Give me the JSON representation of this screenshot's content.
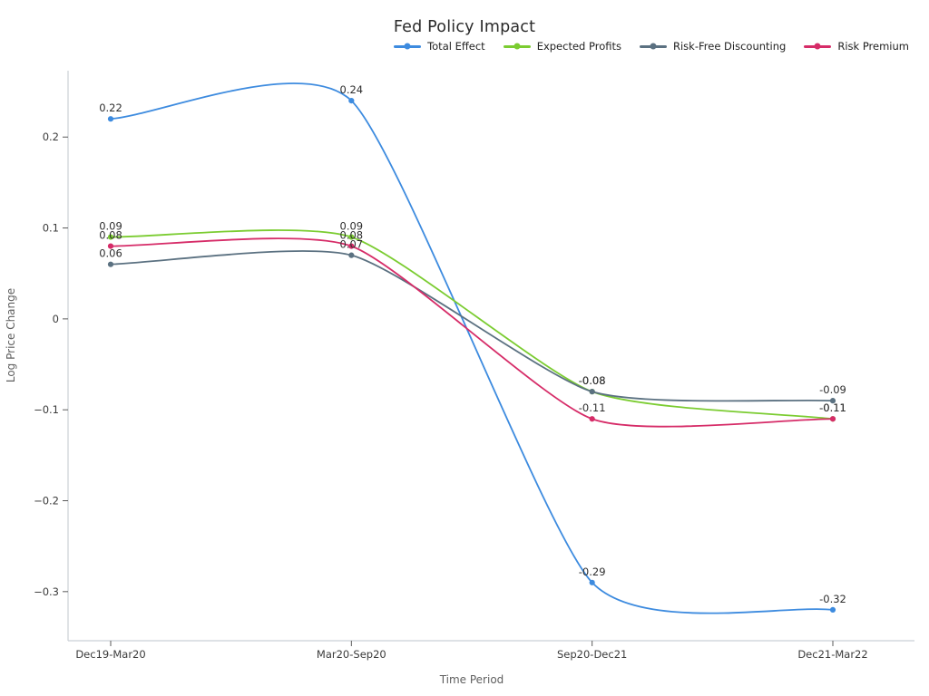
{
  "figure": {
    "title": "Fed Policy Impact"
  },
  "colors": {
    "background": "#ffffff",
    "axis_spine": "#cbd0d6",
    "tick_mark": "#5a5a5a",
    "tick_text": "#3b3b3b",
    "axis_title_text": "#5f5f5f",
    "title_text": "#2a2a2a",
    "point_label_text": "#2e2e2e",
    "legend_text": "#222222"
  },
  "chart_data": {
    "type": "line",
    "line_shape": "spline",
    "markers": true,
    "grid": false,
    "legend_position": "top-right",
    "title": "Fed Policy Impact",
    "xlabel": "Time Period",
    "ylabel": "Log Price Change",
    "categories": [
      "Dec19-Mar20",
      "Mar20-Sep20",
      "Sep20-Dec21",
      "Dec21-Mar22"
    ],
    "series": [
      {
        "name": "Total Effect",
        "color": "#3d8bdf",
        "values": [
          0.22,
          0.24,
          -0.29,
          -0.32
        ],
        "point_labels": [
          "0.22",
          "0.24",
          "-0.29",
          "-0.32"
        ]
      },
      {
        "name": "Expected Profits",
        "color": "#7bcc31",
        "values": [
          0.09,
          0.09,
          -0.08,
          -0.11
        ],
        "point_labels": [
          "0.09",
          "0.09",
          "-0.08",
          "-0.11"
        ]
      },
      {
        "name": "Risk-Free Discounting",
        "color": "#5b7181",
        "values": [
          0.06,
          0.07,
          -0.08,
          -0.09
        ],
        "point_labels": [
          "0.06",
          "0.07",
          "-0.08",
          "-0.09"
        ]
      },
      {
        "name": "Risk Premium",
        "color": "#d62c68",
        "values": [
          0.08,
          0.08,
          -0.11,
          -0.11
        ],
        "point_labels": [
          "0.08",
          "0.08",
          "-0.11",
          "-0.11"
        ]
      }
    ],
    "yticks": {
      "values": [
        0.2,
        0.1,
        0,
        -0.1,
        -0.2,
        -0.3
      ],
      "labels": [
        "0.2",
        "0.1",
        "0",
        "−0.1",
        "−0.2",
        "−0.3"
      ]
    },
    "ylim": [
      -0.354,
      0.273
    ]
  }
}
